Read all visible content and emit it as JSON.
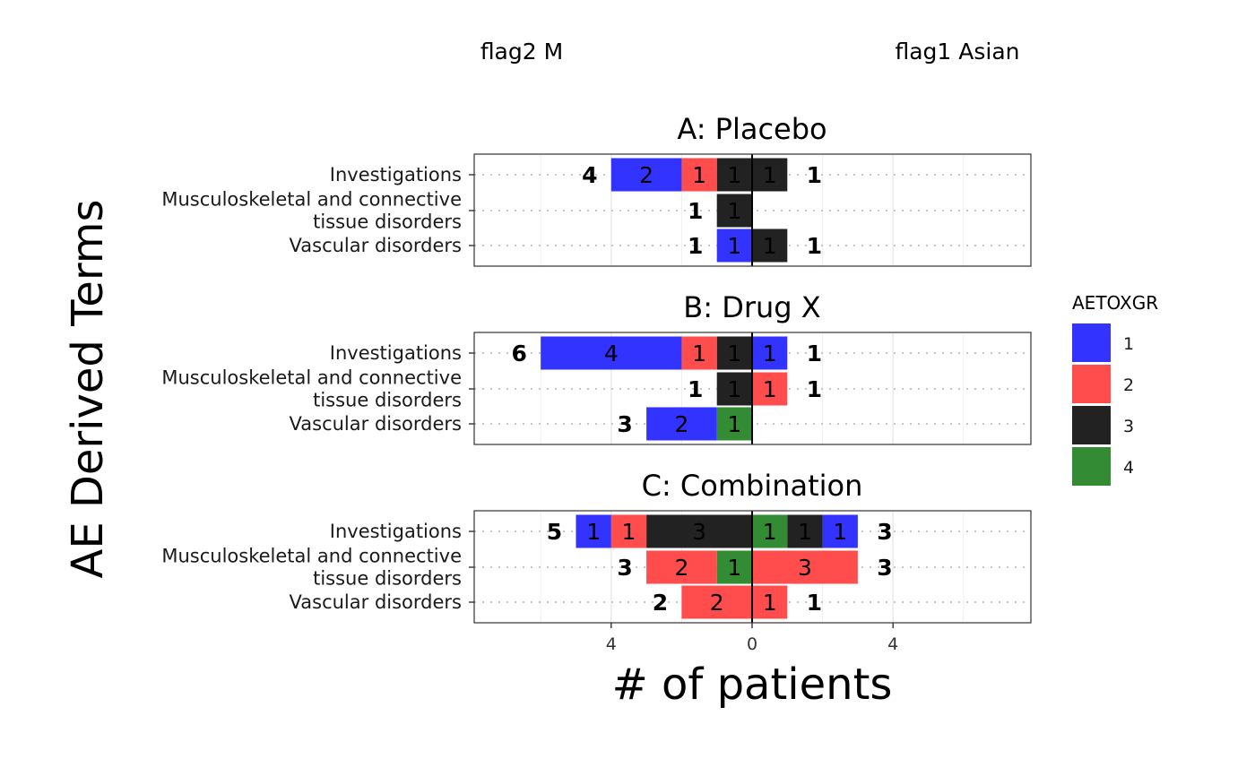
{
  "chart_data": {
    "type": "bar",
    "orientation": "horizontal",
    "stacked": true,
    "xlabel": "# of patients",
    "ylabel": "AE Derived Terms",
    "left_group_label": "flag2 M",
    "right_group_label": "flag1 Asian",
    "x_ticks": [
      "4",
      "0",
      "4"
    ],
    "xlim": [
      -8,
      8
    ],
    "grid": true,
    "legend": {
      "title": "AETOXGR",
      "position": "right",
      "entries": [
        {
          "label": "1",
          "color": "#3333ff"
        },
        {
          "label": "2",
          "color": "#ff4c4c"
        },
        {
          "label": "3",
          "color": "#222222"
        },
        {
          "label": "4",
          "color": "#338c33"
        }
      ]
    },
    "categories": [
      "Investigations",
      "Musculoskeletal and connective tissue disorders",
      "Vascular disorders"
    ],
    "category_lines": [
      [
        "Investigations"
      ],
      [
        "Musculoskeletal and connective",
        "tissue disorders"
      ],
      [
        "Vascular disorders"
      ]
    ],
    "facets": [
      {
        "title": "A: Placebo",
        "rows": [
          {
            "left": [
              {
                "grade": "3",
                "value": 1
              },
              {
                "grade": "2",
                "value": 1
              },
              {
                "grade": "1",
                "value": 2
              }
            ],
            "left_total": "4",
            "right": [
              {
                "grade": "3",
                "value": 1
              }
            ],
            "right_total": "1"
          },
          {
            "left": [
              {
                "grade": "3",
                "value": 1
              }
            ],
            "left_total": "1",
            "right": [],
            "right_total": ""
          },
          {
            "left": [
              {
                "grade": "1",
                "value": 1
              }
            ],
            "left_total": "1",
            "right": [
              {
                "grade": "3",
                "value": 1
              }
            ],
            "right_total": "1"
          }
        ]
      },
      {
        "title": "B: Drug X",
        "rows": [
          {
            "left": [
              {
                "grade": "3",
                "value": 1
              },
              {
                "grade": "2",
                "value": 1
              },
              {
                "grade": "1",
                "value": 4
              }
            ],
            "left_total": "6",
            "right": [
              {
                "grade": "1",
                "value": 1
              }
            ],
            "right_total": "1"
          },
          {
            "left": [
              {
                "grade": "3",
                "value": 1
              }
            ],
            "left_total": "1",
            "right": [
              {
                "grade": "2",
                "value": 1
              }
            ],
            "right_total": "1"
          },
          {
            "left": [
              {
                "grade": "4",
                "value": 1
              },
              {
                "grade": "1",
                "value": 2
              }
            ],
            "left_total": "3",
            "right": [],
            "right_total": ""
          }
        ]
      },
      {
        "title": "C: Combination",
        "rows": [
          {
            "left": [
              {
                "grade": "3",
                "value": 3
              },
              {
                "grade": "2",
                "value": 1
              },
              {
                "grade": "1",
                "value": 1
              }
            ],
            "left_total": "5",
            "right": [
              {
                "grade": "4",
                "value": 1
              },
              {
                "grade": "3",
                "value": 1
              },
              {
                "grade": "1",
                "value": 1
              }
            ],
            "right_total": "3"
          },
          {
            "left": [
              {
                "grade": "4",
                "value": 1
              },
              {
                "grade": "2",
                "value": 2
              }
            ],
            "left_total": "3",
            "right": [
              {
                "grade": "2",
                "value": 3
              }
            ],
            "right_total": "3"
          },
          {
            "left": [
              {
                "grade": "2",
                "value": 2
              }
            ],
            "left_total": "2",
            "right": [
              {
                "grade": "2",
                "value": 1
              }
            ],
            "right_total": "1"
          }
        ]
      }
    ]
  }
}
